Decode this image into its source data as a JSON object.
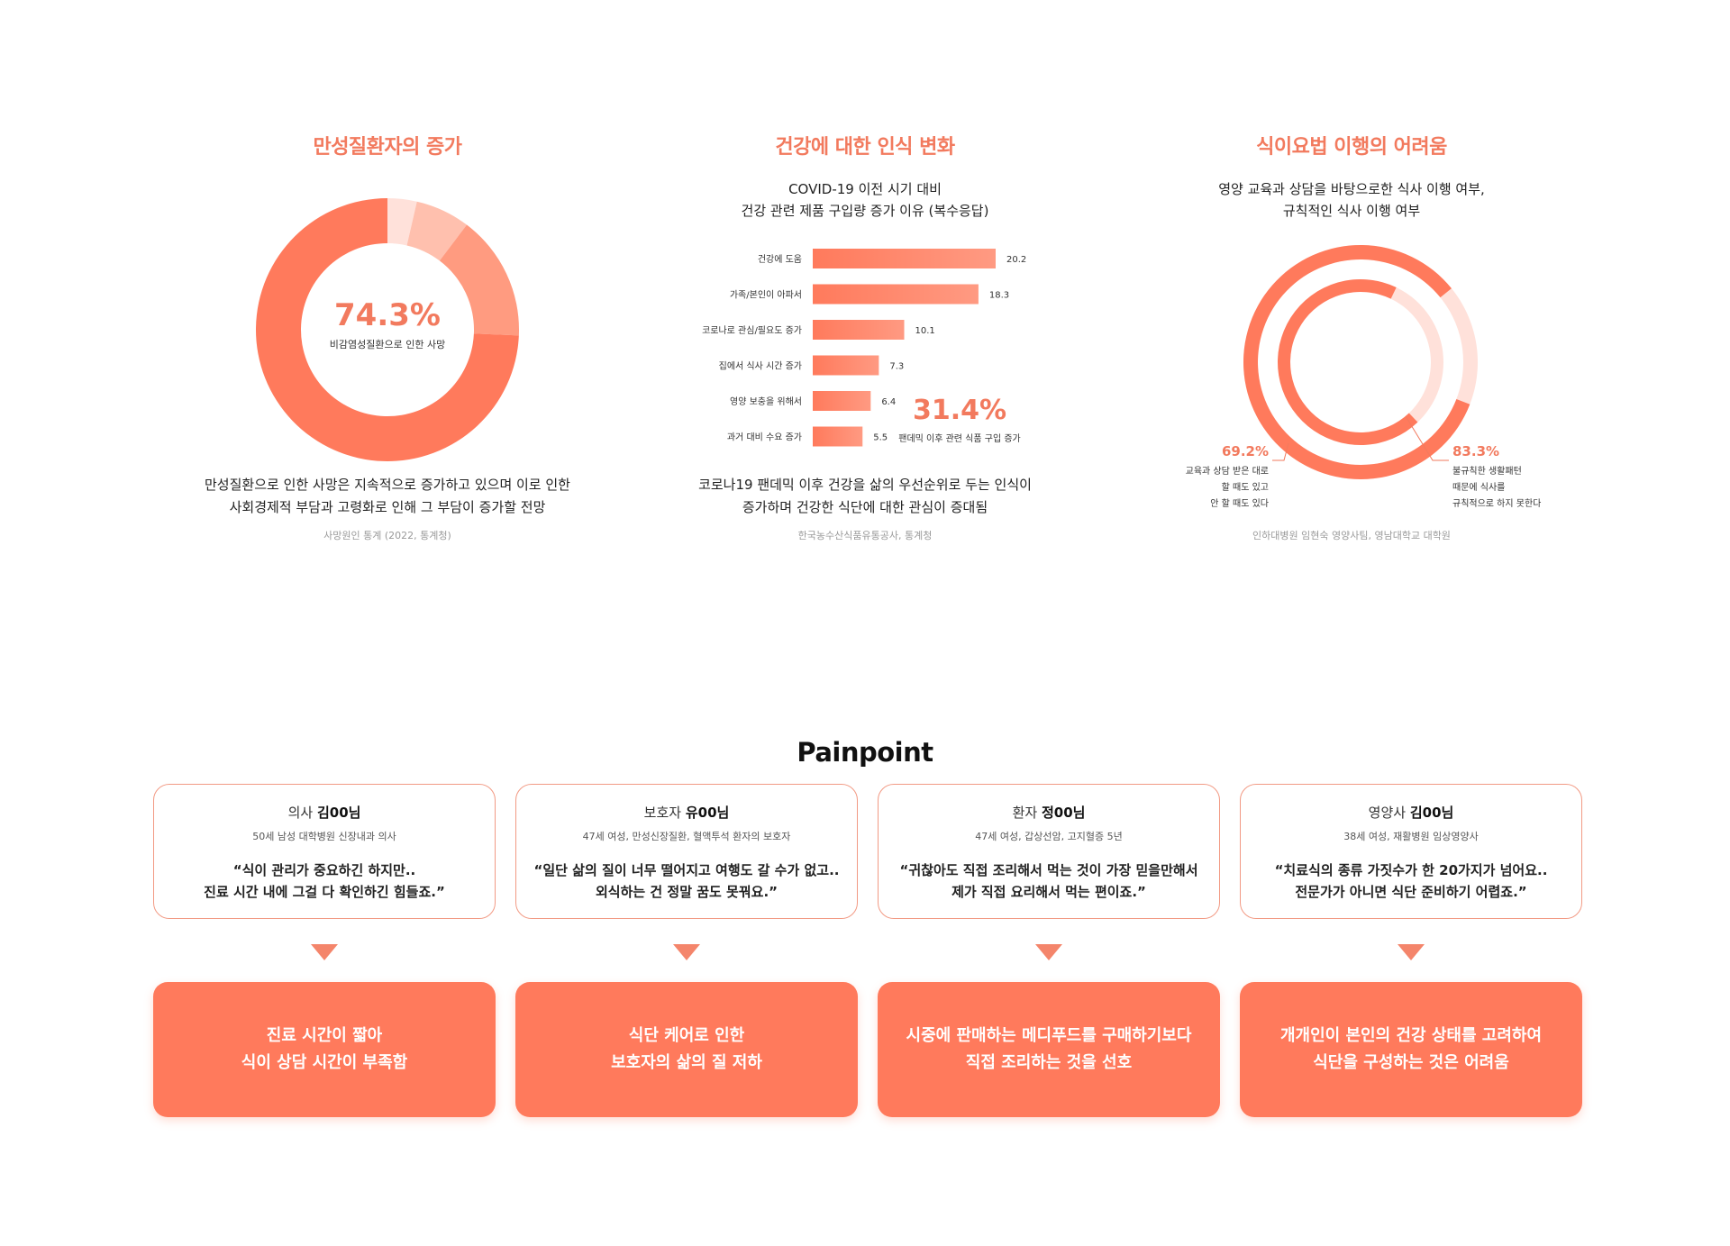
{
  "colors": {
    "accent": "#f27a5e",
    "dark_coral": "#ff7a5c",
    "mid_coral": "#ff9b80",
    "light_coral": "#ffc0ae",
    "pale_coral": "#ffe1da"
  },
  "section1": {
    "title": "만성질환자의 증가",
    "center_value": "74.3%",
    "center_label": "비감염성질환으로 인한 사망",
    "desc_line1": "만성질환으로 인한 사망은 지속적으로 증가하고 있으며 이로 인한",
    "desc_line2": "사회경제적 부담과 고령화로 인해 그 부담이 증가할 전망",
    "source": "사망원인 통계 (2022, 통계청)"
  },
  "section2": {
    "title": "건강에 대한 인식 변화",
    "subtitle_line1": "COVID-19 이전 시기 대비",
    "subtitle_line2": "건강 관련 제품 구입량 증가 이유 (복수응답)",
    "highlight_value": "31.4%",
    "highlight_label": "팬데믹 이후 관련 식품 구입 증가",
    "desc_line1": "코로나19 팬데믹 이후 건강을 삶의 우선순위로 두는 인식이",
    "desc_line2": "증가하며 건강한 식단에 대한 관심이 증대됨",
    "source": "한국농수산식품유통공사, 통계청"
  },
  "section3": {
    "title": "식이요법 이행의 어려움",
    "subtitle_line1": "영양 교육과 상담을 바탕으로한 식사 이행 여부,",
    "subtitle_line2": "규칙적인 식사 이행 여부",
    "left_value": "69.2%",
    "left_label": [
      "교육과 상담 받은 대로",
      "할 때도 있고",
      "안 할 때도 있다"
    ],
    "right_value": "83.3%",
    "right_label": [
      "불규칙한 생활패턴",
      "때문에 식사를",
      "규칙적으로 하지 못한다"
    ],
    "source": "인하대병원 임현숙 영양사팀, 영남대학교 대학원"
  },
  "chart_data": [
    {
      "type": "pie",
      "donut": true,
      "values": [
        74.3,
        15.4,
        6.7,
        3.6
      ],
      "colors": [
        "#ff7a5c",
        "#ff9b80",
        "#ffc0ae",
        "#ffe1da"
      ]
    },
    {
      "type": "bar",
      "orientation": "horizontal",
      "categories": [
        "건강에 도움",
        "가족/본인이 아파서",
        "코로나로 관심/필요도 증가",
        "집에서 식사 시간 증가",
        "영양 보충을 위해서",
        "과거 대비 수요 증가"
      ],
      "values": [
        20.2,
        18.3,
        10.1,
        7.3,
        6.4,
        5.5
      ],
      "value_labels": [
        "20.2",
        "18.3",
        "10.1",
        "7.3",
        "6.4",
        "5.5"
      ]
    },
    {
      "type": "pie",
      "donut": true,
      "rings": [
        {
          "value": 69.2,
          "colors": [
            "#ff7a5c",
            "#ffe1da"
          ]
        },
        {
          "value": 83.3,
          "colors": [
            "#ff7a5c",
            "#ffe1da"
          ]
        }
      ]
    }
  ],
  "painpoint": {
    "title": "Painpoint",
    "cards": [
      {
        "role": "의사",
        "name": "김00님",
        "info": "50세 남성 대학병원 신장내과 의사",
        "quote1": "“식이 관리가 중요하긴 하지만..",
        "quote2": "진료 시간 내에 그걸 다 확인하긴 힘들죠.”",
        "result1": "진료 시간이 짧아",
        "result2": "식이 상담 시간이 부족함"
      },
      {
        "role": "보호자",
        "name": "유00님",
        "info": "47세 여성, 만성신장질환, 혈액투석 환자의 보호자",
        "quote1": "“일단 삶의 질이 너무 떨어지고 여행도 갈 수가 없고..",
        "quote2": "외식하는 건 정말 꿈도 못꿔요.”",
        "result1": "식단 케어로 인한",
        "result2": "보호자의 삶의 질 저하"
      },
      {
        "role": "환자",
        "name": "정00님",
        "info": "47세 여성, 갑상선암, 고지혈증 5년",
        "quote1": "“귀찮아도 직접 조리해서 먹는 것이 가장 믿을만해서",
        "quote2": "제가 직접 요리해서 먹는 편이죠.”",
        "result1": "시중에 판매하는 메디푸드를 구매하기보다",
        "result2": "직접 조리하는 것을 선호"
      },
      {
        "role": "영양사",
        "name": "김00님",
        "info": "38세 여성, 재활병원 임상영양사",
        "quote1": "“치료식의 종류 가짓수가 한 20가지가 넘어요..",
        "quote2": "전문가가 아니면 식단 준비하기 어렵죠.”",
        "result1": "개개인이 본인의 건강 상태를 고려하여",
        "result2": "식단을 구성하는 것은 어려움"
      }
    ]
  }
}
